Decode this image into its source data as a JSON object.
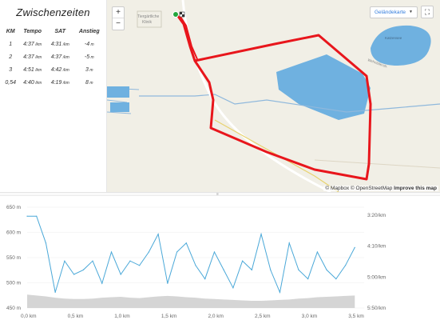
{
  "splits": {
    "title": "Zwischenzeiten",
    "headers": [
      "KM",
      "Tempo",
      "SAT",
      "Anstieg"
    ],
    "rows": [
      {
        "km": "1",
        "tempo": "4:37",
        "sat": "4:31",
        "anstieg": "-4"
      },
      {
        "km": "2",
        "tempo": "4:37",
        "sat": "4:37",
        "anstieg": "-5"
      },
      {
        "km": "3",
        "tempo": "4:51",
        "sat": "4:42",
        "anstieg": "3"
      },
      {
        "km": "0,54",
        "tempo": "4:40",
        "sat": "4:19",
        "anstieg": "8"
      }
    ],
    "pace_unit": "/km",
    "elev_unit": "m"
  },
  "map": {
    "zoom_in": "+",
    "zoom_out": "−",
    "layer_label": "Geländekarte",
    "layer_caret": "▼",
    "fullscreen": "⛶",
    "label_1": "Tiergärtliche",
    "label_2": "Klinik",
    "lake_label": "Katzensee",
    "road_label": "Wehntalerstr.",
    "attribution_1": "© Mapbox © OpenStreetMap",
    "attribution_2": "Improve this map",
    "colors": {
      "route": "#e8161c",
      "water": "#6fb1e0",
      "start": "#22a63c"
    }
  },
  "profile": {
    "elev_ticks": [
      "650 m",
      "600 m",
      "550 m",
      "500 m",
      "450 m"
    ],
    "pace_ticks": [
      "3:20/km",
      "4:10/km",
      "5:00/km",
      "5:50/km"
    ],
    "x_ticks": [
      "0,0 km",
      "0,5 km",
      "1,0 km",
      "1,5 km",
      "2,0 km",
      "2,5 km",
      "3,0 km",
      "3,5 km"
    ],
    "grip": "≡"
  },
  "chart_data": {
    "type": "line",
    "x": [
      0.0,
      0.1,
      0.2,
      0.3,
      0.4,
      0.5,
      0.6,
      0.7,
      0.8,
      0.9,
      1.0,
      1.1,
      1.2,
      1.3,
      1.4,
      1.5,
      1.6,
      1.7,
      1.8,
      1.9,
      2.0,
      2.1,
      2.2,
      2.3,
      2.4,
      2.5,
      2.6,
      2.7,
      2.8,
      2.9,
      3.0,
      3.1,
      3.2,
      3.3,
      3.4,
      3.5
    ],
    "series": [
      {
        "values": [
          640,
          640,
          580,
          470,
          540,
          510,
          520,
          540,
          490,
          560,
          510,
          540,
          530,
          560,
          600,
          490,
          560,
          580,
          530,
          500,
          560,
          520,
          480,
          540,
          520,
          600,
          520,
          470,
          580,
          520,
          500,
          560,
          520,
          500,
          530,
          570
        ]
      },
      {
        "values": [
          465,
          463,
          461,
          458,
          456,
          455,
          455,
          456,
          458,
          459,
          460,
          458,
          457,
          459,
          461,
          462,
          461,
          459,
          458,
          456,
          455,
          454,
          453,
          452,
          451,
          451,
          452,
          453,
          454,
          456,
          457,
          459,
          460,
          461,
          462,
          463
        ]
      }
    ],
    "ylim": [
      435,
      660
    ],
    "xlim": [
      0,
      3.6
    ],
    "y2lim_pace": [
      "3:20/km",
      "5:50/km"
    ],
    "grid": true
  }
}
